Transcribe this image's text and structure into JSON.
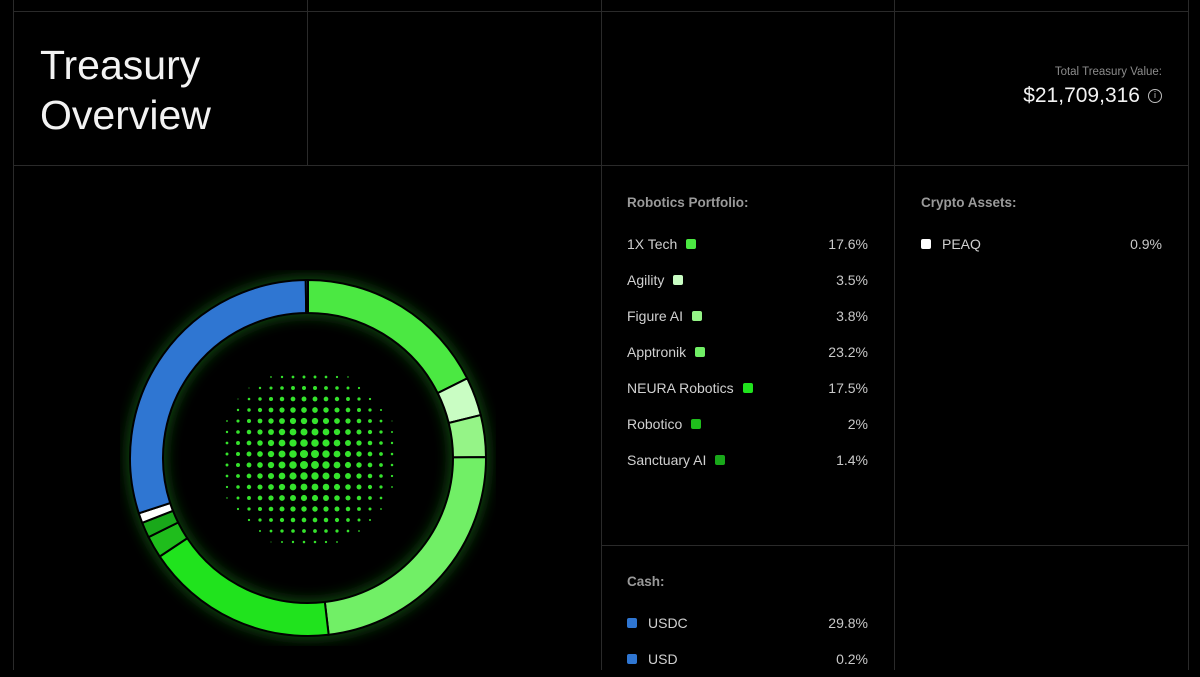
{
  "header": {
    "title_line1": "Treasury",
    "title_line2": "Overview",
    "total_label": "Total Treasury Value:",
    "total_value": "$21,709,316",
    "info_glyph": "i"
  },
  "robotics": {
    "title": "Robotics Portfolio:",
    "items": [
      {
        "name": "1X Tech",
        "pct": "17.6%",
        "color": "#4be842"
      },
      {
        "name": "Agility",
        "pct": "3.5%",
        "color": "#c9fdc3"
      },
      {
        "name": "Figure AI",
        "pct": "3.8%",
        "color": "#95f487"
      },
      {
        "name": "Apptronik",
        "pct": "23.2%",
        "color": "#71ef66"
      },
      {
        "name": "NEURA Robotics",
        "pct": "17.5%",
        "color": "#20e31d"
      },
      {
        "name": "Robotico",
        "pct": "2%",
        "color": "#1fbd1c"
      },
      {
        "name": "Sanctuary AI",
        "pct": "1.4%",
        "color": "#19a81a"
      }
    ]
  },
  "crypto": {
    "title": "Crypto Assets:",
    "items": [
      {
        "name": "PEAQ",
        "pct": "0.9%",
        "color": "#ffffff"
      }
    ]
  },
  "cash": {
    "title": "Cash:",
    "items": [
      {
        "name": "USDC",
        "pct": "29.8%",
        "color": "#2f76d2"
      },
      {
        "name": "USD",
        "pct": "0.2%",
        "color": "#2f76d2"
      }
    ]
  },
  "chart_data": {
    "type": "pie",
    "style": "donut",
    "start": "12 o'clock, clockwise",
    "slices": [
      {
        "label": "1X Tech",
        "value": 17.6,
        "color": "#4be842"
      },
      {
        "label": "Agility",
        "value": 3.5,
        "color": "#c9fdc3"
      },
      {
        "label": "Figure AI",
        "value": 3.8,
        "color": "#95f487"
      },
      {
        "label": "Apptronik",
        "value": 23.2,
        "color": "#71ef66"
      },
      {
        "label": "NEURA Robotics",
        "value": 17.5,
        "color": "#20e31d"
      },
      {
        "label": "Robotico",
        "value": 2,
        "color": "#1fbd1c"
      },
      {
        "label": "Sanctuary AI",
        "value": 1.4,
        "color": "#19a81a"
      },
      {
        "label": "PEAQ",
        "value": 0.9,
        "color": "#ffffff"
      },
      {
        "label": "USDC",
        "value": 29.8,
        "color": "#2f76d2"
      },
      {
        "label": "USD",
        "value": 0.2,
        "color": "#2f76d2"
      }
    ],
    "center_graphic": "green dot halftone"
  }
}
